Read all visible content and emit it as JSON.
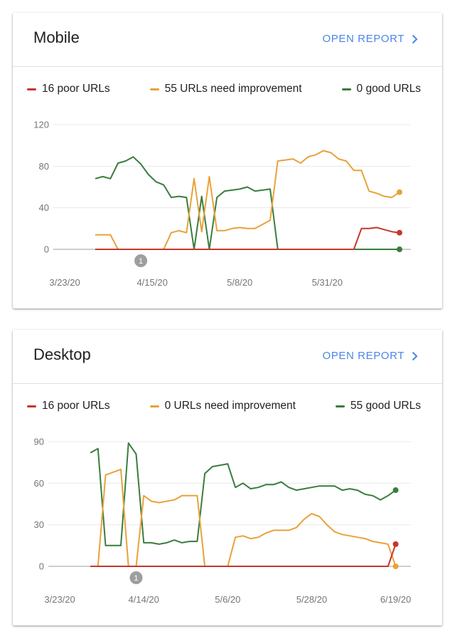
{
  "chart_data": [
    {
      "type": "line",
      "title": "Mobile",
      "link": "OPEN REPORT",
      "x": [
        "3/31/20",
        "4/2/20",
        "4/4/20",
        "4/6/20",
        "4/8/20",
        "4/10/20",
        "4/12/20",
        "4/14/20",
        "4/16/20",
        "4/18/20",
        "4/20/20",
        "4/22/20",
        "4/24/20",
        "4/26/20",
        "4/28/20",
        "4/30/20",
        "5/2/20",
        "5/4/20",
        "5/6/20",
        "5/8/20",
        "5/10/20",
        "5/12/20",
        "5/14/20",
        "5/16/20",
        "5/18/20",
        "5/20/20",
        "5/22/20",
        "5/24/20",
        "5/26/20",
        "5/28/20",
        "5/30/20",
        "6/1/20",
        "6/3/20",
        "6/5/20",
        "6/7/20",
        "6/9/20",
        "6/11/20",
        "6/13/20",
        "6/15/20",
        "6/17/20",
        "6/19/20"
      ],
      "series": [
        {
          "name": "16 poor URLs",
          "color": "#c5372b",
          "values": [
            0,
            0,
            0,
            0,
            0,
            0,
            0,
            0,
            0,
            0,
            0,
            0,
            0,
            0,
            0,
            0,
            0,
            0,
            0,
            0,
            0,
            0,
            0,
            0,
            0,
            0,
            0,
            0,
            0,
            0,
            0,
            0,
            0,
            0,
            0,
            20,
            20,
            21,
            19,
            17,
            16
          ]
        },
        {
          "name": "55 URLs need improvement",
          "color": "#e8a23a",
          "values": [
            14,
            14,
            14,
            0,
            0,
            0,
            0,
            0,
            0,
            0,
            16,
            18,
            16,
            68,
            17,
            70,
            18,
            18,
            20,
            21,
            20,
            20,
            24,
            28,
            85,
            86,
            87,
            83,
            89,
            91,
            95,
            93,
            87,
            85,
            76,
            76,
            56,
            54,
            51,
            50,
            55
          ]
        },
        {
          "name": "0 good URLs",
          "color": "#3a7d3d",
          "values": [
            68,
            70,
            68,
            83,
            85,
            89,
            82,
            72,
            65,
            62,
            50,
            51,
            50,
            0,
            51,
            0,
            50,
            56,
            57,
            58,
            60,
            56,
            57,
            58,
            0,
            0,
            0,
            0,
            0,
            0,
            0,
            0,
            0,
            0,
            0,
            0,
            0,
            0,
            0,
            0,
            0
          ]
        }
      ],
      "xlim": [
        "3/20/20",
        "6/22/20"
      ],
      "xticks": [
        "3/23/20",
        "4/15/20",
        "5/8/20",
        "5/31/20"
      ],
      "ylim": [
        0,
        120
      ],
      "yticks": [
        0,
        40,
        80,
        120
      ],
      "grid": true,
      "annotations": [
        {
          "x": "4/12/20",
          "label": "1"
        }
      ]
    },
    {
      "type": "line",
      "title": "Desktop",
      "link": "OPEN REPORT",
      "x": [
        "3/31/20",
        "4/2/20",
        "4/4/20",
        "4/6/20",
        "4/8/20",
        "4/10/20",
        "4/12/20",
        "4/14/20",
        "4/16/20",
        "4/18/20",
        "4/20/20",
        "4/22/20",
        "4/24/20",
        "4/26/20",
        "4/28/20",
        "4/30/20",
        "5/2/20",
        "5/4/20",
        "5/6/20",
        "5/8/20",
        "5/10/20",
        "5/12/20",
        "5/14/20",
        "5/16/20",
        "5/18/20",
        "5/20/20",
        "5/22/20",
        "5/24/20",
        "5/26/20",
        "5/28/20",
        "5/30/20",
        "6/1/20",
        "6/3/20",
        "6/5/20",
        "6/7/20",
        "6/9/20",
        "6/11/20",
        "6/13/20",
        "6/15/20",
        "6/17/20",
        "6/19/20"
      ],
      "series": [
        {
          "name": "16 poor URLs",
          "color": "#c5372b",
          "values": [
            0,
            0,
            0,
            0,
            0,
            0,
            0,
            0,
            0,
            0,
            0,
            0,
            0,
            0,
            0,
            0,
            0,
            0,
            0,
            0,
            0,
            0,
            0,
            0,
            0,
            0,
            0,
            0,
            0,
            0,
            0,
            0,
            0,
            0,
            0,
            0,
            0,
            0,
            0,
            0,
            16
          ]
        },
        {
          "name": "0 URLs need improvement",
          "color": "#e8a23a",
          "values": [
            0,
            0,
            66,
            68,
            70,
            0,
            0,
            51,
            47,
            46,
            47,
            48,
            51,
            51,
            51,
            0,
            0,
            0,
            0,
            21,
            22,
            20,
            21,
            24,
            26,
            26,
            26,
            28,
            34,
            38,
            36,
            30,
            25,
            23,
            22,
            21,
            20,
            18,
            17,
            16,
            0
          ]
        },
        {
          "name": "55 good URLs",
          "color": "#3a7d3d",
          "values": [
            82,
            85,
            15,
            15,
            15,
            89,
            81,
            17,
            17,
            16,
            17,
            19,
            17,
            18,
            18,
            67,
            72,
            73,
            74,
            57,
            60,
            56,
            57,
            59,
            59,
            61,
            57,
            55,
            56,
            57,
            58,
            58,
            58,
            55,
            56,
            55,
            52,
            51,
            48,
            51,
            55
          ]
        }
      ],
      "xlim": [
        "3/20/20",
        "6/23/20"
      ],
      "xticks": [
        "3/23/20",
        "4/14/20",
        "5/6/20",
        "5/28/20",
        "6/19/20"
      ],
      "ylim": [
        0,
        90
      ],
      "yticks": [
        0,
        30,
        60,
        90
      ],
      "grid": true,
      "annotations": [
        {
          "x": "4/12/20",
          "label": "1"
        }
      ]
    }
  ]
}
